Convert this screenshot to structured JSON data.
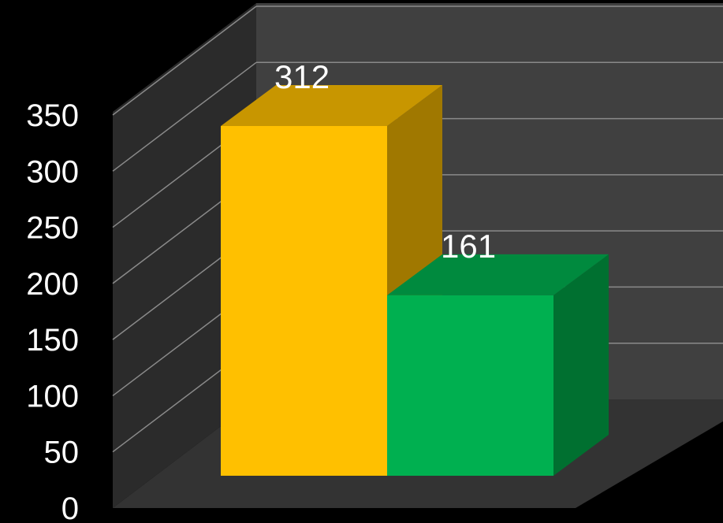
{
  "chart_data": {
    "type": "bar",
    "style": "3d-clustered-column",
    "categories": [
      "",
      ""
    ],
    "values": [
      312,
      161
    ],
    "data_labels": [
      "312",
      "161"
    ],
    "ylim": [
      0,
      350
    ],
    "yticks": [
      "0",
      "50",
      "100",
      "150",
      "200",
      "250",
      "300",
      "350"
    ],
    "grid": true,
    "legend": "none",
    "title": "",
    "xlabel": "",
    "ylabel": "",
    "colors": {
      "background": "#000000",
      "back_wall": "#404040",
      "side_wall": "#2b2b2b",
      "floor": "#333333",
      "gridline": "#8a8a8a",
      "bar_1_front": "#FFC000",
      "bar_1_top": "#C89600",
      "bar_1_side": "#A07800",
      "bar_2_front": "#00B050",
      "bar_2_top": "#008A3E",
      "bar_2_side": "#007030"
    }
  }
}
